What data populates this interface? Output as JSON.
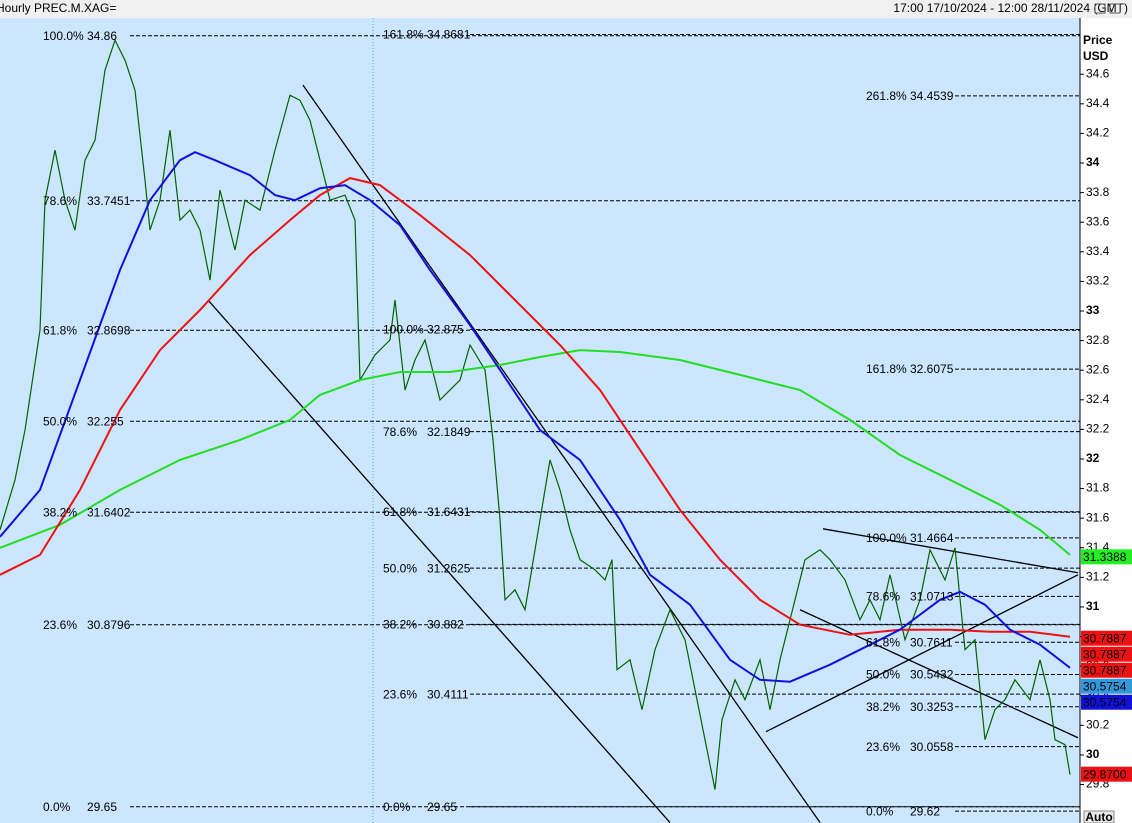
{
  "chart_data": {
    "type": "line",
    "title": "Hourly PREC.M.XAG=",
    "date_range": "17:00 17/10/2024 - 12:00 28/11/2024 (GMT)",
    "y_axis_label": [
      "Price",
      "USD"
    ],
    "auto_button": "Auto",
    "xlim": [
      0,
      1080
    ],
    "ylim": [
      29.54,
      34.98
    ],
    "yticks": [
      34.6,
      34.4,
      34.2,
      34,
      33.8,
      33.6,
      33.4,
      33.2,
      33,
      32.8,
      32.6,
      32.4,
      32.2,
      32,
      31.8,
      31.6,
      31.4,
      31.2,
      31,
      30.8,
      30.6,
      30.4,
      30.2,
      30,
      29.8
    ],
    "series": [
      {
        "color": "#006400",
        "x": [
          0,
          15,
          25,
          40,
          45,
          55,
          65,
          75,
          85,
          95,
          105,
          115,
          125,
          135,
          145,
          150,
          160,
          170,
          180,
          190,
          200,
          210,
          220,
          235,
          245,
          260,
          275,
          290,
          300,
          310,
          320,
          330,
          345,
          355,
          360,
          375,
          390,
          395,
          405,
          415,
          425,
          440,
          460,
          470,
          485,
          493,
          500,
          505,
          515,
          525,
          540,
          550,
          560,
          570,
          580,
          595,
          605,
          612,
          617,
          630,
          642,
          655,
          670,
          685,
          695,
          705,
          715,
          722,
          735,
          745,
          760,
          770,
          780,
          795,
          805,
          820,
          830,
          845,
          860,
          870,
          880,
          890,
          905,
          920,
          930,
          945,
          955,
          965,
          975,
          985,
          995,
          1005,
          1015,
          1030,
          1040,
          1050,
          1055,
          1065,
          1070
        ],
        "values": [
          31.521,
          31.859,
          32.196,
          32.871,
          33.749,
          34.087,
          33.749,
          33.547,
          34.019,
          34.154,
          34.627,
          34.83,
          34.695,
          34.492,
          33.884,
          33.547,
          33.749,
          34.222,
          33.614,
          33.682,
          33.547,
          33.209,
          33.817,
          33.412,
          33.749,
          33.682,
          34.087,
          34.458,
          34.424,
          34.289,
          34.019,
          33.749,
          33.783,
          33.614,
          32.534,
          32.703,
          32.804,
          33.074,
          32.466,
          32.669,
          32.804,
          32.399,
          32.534,
          32.77,
          32.601,
          32.129,
          31.589,
          31.048,
          31.116,
          30.981,
          31.589,
          31.994,
          31.791,
          31.521,
          31.319,
          31.251,
          31.183,
          31.319,
          30.576,
          30.643,
          30.306,
          30.711,
          30.981,
          30.778,
          30.441,
          30.103,
          29.766,
          30.238,
          30.508,
          30.373,
          30.643,
          30.306,
          30.643,
          31.048,
          31.319,
          31.386,
          31.319,
          31.183,
          30.913,
          31.048,
          30.913,
          31.217,
          30.778,
          31.048,
          31.386,
          31.183,
          31.4,
          30.711,
          30.778,
          30.103,
          30.306,
          30.373,
          30.508,
          30.373,
          30.643,
          30.373,
          30.103,
          30.069,
          29.867
        ]
      },
      {
        "color": "#22dd22",
        "x": [
          0,
          60,
          120,
          180,
          240,
          290,
          320,
          360,
          400,
          450,
          500,
          540,
          580,
          620,
          680,
          740,
          800,
          850,
          900,
          950,
          1000,
          1040,
          1070
        ],
        "values": [
          31.4,
          31.555,
          31.791,
          31.994,
          32.129,
          32.264,
          32.433,
          32.534,
          32.588,
          32.588,
          32.635,
          32.689,
          32.736,
          32.723,
          32.669,
          32.568,
          32.466,
          32.264,
          32.027,
          31.859,
          31.69,
          31.521,
          31.352
        ]
      },
      {
        "color": "#ee1111",
        "x": [
          0,
          40,
          80,
          120,
          160,
          200,
          250,
          290,
          320,
          350,
          380,
          420,
          470,
          520,
          560,
          600,
          640,
          680,
          720,
          760,
          800,
          850,
          900,
          950,
          990,
          1030,
          1070
        ],
        "values": [
          31.217,
          31.352,
          31.791,
          32.331,
          32.736,
          33.007,
          33.378,
          33.614,
          33.783,
          33.898,
          33.851,
          33.648,
          33.378,
          33.04,
          32.77,
          32.466,
          32.061,
          31.656,
          31.319,
          31.048,
          30.88,
          30.812,
          30.846,
          30.846,
          30.832,
          30.832,
          30.799
        ]
      },
      {
        "color": "#1111dd",
        "x": [
          0,
          40,
          80,
          120,
          150,
          180,
          195,
          215,
          250,
          275,
          295,
          320,
          345,
          370,
          400,
          430,
          470,
          500,
          540,
          580,
          620,
          650,
          690,
          730,
          760,
          790,
          830,
          860,
          900,
          940,
          960,
          985,
          1010,
          1040,
          1070
        ],
        "values": [
          31.474,
          31.791,
          32.534,
          33.277,
          33.749,
          34.019,
          34.073,
          34.019,
          33.918,
          33.783,
          33.749,
          33.83,
          33.851,
          33.749,
          33.58,
          33.277,
          32.905,
          32.601,
          32.196,
          31.994,
          31.589,
          31.217,
          31.015,
          30.643,
          30.508,
          30.495,
          30.61,
          30.711,
          30.846,
          31.048,
          31.102,
          31.015,
          30.846,
          30.745,
          30.589
        ]
      }
    ],
    "trendlines": [
      {
        "x": [
          303,
          820
        ],
        "y": [
          34.526,
          29.543
        ]
      },
      {
        "x": [
          208,
          670
        ],
        "y": [
          33.074,
          29.543
        ]
      },
      {
        "x": [
          823,
          1078
        ],
        "y": [
          31.528,
          31.231
        ]
      },
      {
        "x": [
          766,
          1078
        ],
        "y": [
          30.157,
          31.217
        ]
      },
      {
        "x": [
          800,
          1078
        ],
        "y": [
          30.981,
          30.116
        ]
      }
    ],
    "fib_levels": [
      [
        {
          "pct": "100.0%",
          "value": 34.86
        },
        {
          "pct": "78.6%",
          "value": 33.7451
        },
        {
          "pct": "61.8%",
          "value": 32.8698
        },
        {
          "pct": "50.0%",
          "value": 32.255
        },
        {
          "pct": "38.2%",
          "value": 31.6402
        },
        {
          "pct": "23.6%",
          "value": 30.8796
        },
        {
          "pct": "0.0%",
          "value": 29.65
        }
      ],
      [
        {
          "pct": "161.8%",
          "value": 34.8681
        },
        {
          "pct": "100.0%",
          "value": 32.875
        },
        {
          "pct": "78.6%",
          "value": 32.1849
        },
        {
          "pct": "61.8%",
          "value": 31.6431
        },
        {
          "pct": "50.0%",
          "value": 31.2625
        },
        {
          "pct": "38.2%",
          "value": 30.882
        },
        {
          "pct": "23.6%",
          "value": 30.4111
        },
        {
          "pct": "0.0%",
          "value": 29.65
        }
      ],
      [
        {
          "pct": "261.8%",
          "value": 34.4539
        },
        {
          "pct": "161.8%",
          "value": 32.6075
        },
        {
          "pct": "100.0%",
          "value": 31.4664
        },
        {
          "pct": "78.6%",
          "value": 31.0713
        },
        {
          "pct": "61.8%",
          "value": 30.7611
        },
        {
          "pct": "50.0%",
          "value": 30.5432
        },
        {
          "pct": "38.2%",
          "value": 30.3253
        },
        {
          "pct": "23.6%",
          "value": 30.0558
        },
        {
          "pct": "0.0%",
          "value": 29.62
        }
      ]
    ],
    "price_tags": [
      {
        "value": 31.3388,
        "color": "#22ee22"
      },
      {
        "value": 30.7887,
        "color": "#ee1111"
      },
      {
        "value": 30.7887,
        "color": "#ee1111"
      },
      {
        "value": 30.7887,
        "color": "#ee1111"
      },
      {
        "value": 30.5754,
        "color": "#3399dd"
      },
      {
        "value": 30.5754,
        "color": "#1111dd"
      },
      {
        "value": 29.87,
        "label": "29.8700",
        "color": "#ee1111"
      }
    ]
  }
}
